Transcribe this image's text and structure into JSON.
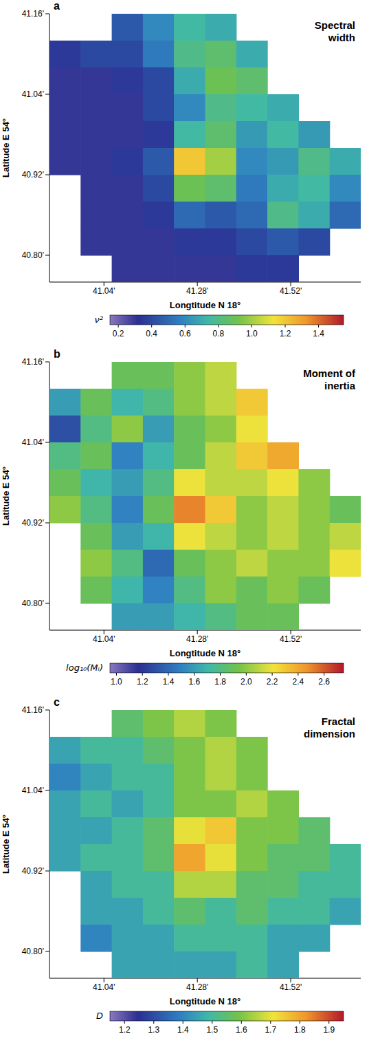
{
  "chart_data": [
    {
      "type": "heatmap",
      "panel": "a",
      "title": "Spectral width",
      "x_label": "Longtitude N 18°",
      "y_label": "Latitude E 54°",
      "x": [
        40.94,
        41.02,
        41.1,
        41.18,
        41.26,
        41.34,
        41.42,
        41.5,
        41.58,
        41.66
      ],
      "y": [
        41.14,
        41.1,
        41.06,
        41.02,
        40.98,
        40.94,
        40.9,
        40.86,
        40.82,
        40.78
      ],
      "cells": [
        [
          null,
          null,
          0.45,
          0.6,
          0.75,
          0.7,
          null,
          null,
          null,
          null
        ],
        [
          0.35,
          0.4,
          0.4,
          0.55,
          0.8,
          0.85,
          0.7,
          null,
          null,
          null
        ],
        [
          0.3,
          0.3,
          0.35,
          0.4,
          0.7,
          0.9,
          0.85,
          null,
          null,
          null
        ],
        [
          0.3,
          0.3,
          0.3,
          0.4,
          0.6,
          0.8,
          0.75,
          0.7,
          null,
          null
        ],
        [
          0.3,
          0.3,
          0.3,
          0.35,
          0.75,
          0.85,
          0.65,
          0.75,
          0.65,
          null
        ],
        [
          0.3,
          0.3,
          0.35,
          0.45,
          1.2,
          1.0,
          0.6,
          0.65,
          0.8,
          0.7
        ],
        [
          null,
          0.3,
          0.3,
          0.4,
          0.9,
          0.85,
          0.55,
          0.7,
          0.75,
          0.6
        ],
        [
          null,
          0.3,
          0.3,
          0.35,
          0.5,
          0.45,
          0.5,
          0.8,
          0.7,
          0.5
        ],
        [
          null,
          0.3,
          0.3,
          0.3,
          0.35,
          0.35,
          0.4,
          0.45,
          0.4,
          null
        ],
        [
          null,
          null,
          0.3,
          0.3,
          0.3,
          0.3,
          0.35,
          0.35,
          null,
          null
        ]
      ],
      "xlim": [
        40.9,
        41.7
      ],
      "ylim": [
        40.76,
        41.16
      ],
      "xticks": [
        {
          "value": 41.04,
          "label": "41.04'"
        },
        {
          "value": 41.28,
          "label": "41.28'"
        },
        {
          "value": 41.52,
          "label": "41.52'"
        }
      ],
      "yticks": [
        {
          "value": 40.8,
          "label": "40.80'"
        },
        {
          "value": 40.92,
          "label": "40.92'"
        },
        {
          "value": 41.04,
          "label": "41.04'"
        },
        {
          "value": 41.16,
          "label": "41.16'"
        }
      ],
      "colorbar_label": "ν²",
      "colorbar_range": [
        0.15,
        1.55
      ],
      "colorbar_ticks": [
        0.2,
        0.4,
        0.6,
        0.8,
        {
          "value": 1,
          "label": "1.0"
        },
        1.2,
        1.4
      ],
      "grid": false
    },
    {
      "type": "heatmap",
      "panel": "b",
      "title": "Moment of inertia",
      "x_label": "Longtitude N 18°",
      "y_label": "Latitude E 54°",
      "x": [
        40.94,
        41.02,
        41.1,
        41.18,
        41.26,
        41.34,
        41.42,
        41.5,
        41.58,
        41.66
      ],
      "y": [
        41.14,
        41.1,
        41.06,
        41.02,
        40.98,
        40.94,
        40.9,
        40.86,
        40.82,
        40.78
      ],
      "cells": [
        [
          null,
          null,
          1.9,
          1.9,
          2.0,
          2.1,
          null,
          null,
          null,
          null
        ],
        [
          1.6,
          1.9,
          1.7,
          1.8,
          2.0,
          2.1,
          2.3,
          null,
          null,
          null
        ],
        [
          1.3,
          1.8,
          2.0,
          1.6,
          1.9,
          2.0,
          2.2,
          null,
          null,
          null
        ],
        [
          1.8,
          1.9,
          1.5,
          1.7,
          1.9,
          2.1,
          2.3,
          2.4,
          null,
          null
        ],
        [
          1.9,
          1.7,
          1.6,
          1.8,
          2.2,
          2.1,
          2.1,
          2.2,
          2.0,
          null
        ],
        [
          2.0,
          1.8,
          1.5,
          1.9,
          2.5,
          2.3,
          2.0,
          2.1,
          2.0,
          1.9
        ],
        [
          null,
          1.9,
          1.6,
          1.7,
          2.2,
          2.1,
          2.0,
          2.1,
          2.0,
          2.1
        ],
        [
          null,
          2.0,
          1.8,
          1.4,
          1.9,
          2.0,
          2.1,
          2.0,
          2.0,
          2.2
        ],
        [
          null,
          1.9,
          1.7,
          1.5,
          1.8,
          2.0,
          1.9,
          2.0,
          1.9,
          null
        ],
        [
          null,
          null,
          1.6,
          1.6,
          1.7,
          1.8,
          1.9,
          1.9,
          null,
          null
        ]
      ],
      "xlim": [
        40.9,
        41.7
      ],
      "ylim": [
        40.76,
        41.16
      ],
      "xticks": [
        {
          "value": 41.04,
          "label": "41.04'"
        },
        {
          "value": 41.28,
          "label": "41.28'"
        },
        {
          "value": 41.52,
          "label": "41.52'"
        }
      ],
      "yticks": [
        {
          "value": 40.8,
          "label": "40.80'"
        },
        {
          "value": 40.92,
          "label": "40.92'"
        },
        {
          "value": 41.04,
          "label": "41.04'"
        },
        {
          "value": 41.16,
          "label": "41.16'"
        }
      ],
      "colorbar_label": "log₁₀(Mᵢ)",
      "colorbar_range": [
        0.95,
        2.75
      ],
      "colorbar_ticks": [
        {
          "value": 1,
          "label": "1.0"
        },
        1.2,
        1.4,
        1.6,
        1.8,
        {
          "value": 2,
          "label": "2.0"
        },
        2.2,
        2.4,
        2.6
      ],
      "grid": false
    },
    {
      "type": "heatmap",
      "panel": "c",
      "title": "Fractal dimension",
      "x_label": "Longtitude N 18°",
      "y_label": "Latitude E 54°",
      "x": [
        40.94,
        41.02,
        41.1,
        41.18,
        41.26,
        41.34,
        41.42,
        41.5,
        41.58,
        41.66
      ],
      "y": [
        41.14,
        41.1,
        41.06,
        41.02,
        40.98,
        40.94,
        40.9,
        40.86,
        40.82,
        40.78
      ],
      "cells": [
        [
          null,
          null,
          1.55,
          1.6,
          1.65,
          1.6,
          null,
          null,
          null,
          null
        ],
        [
          1.45,
          1.5,
          1.5,
          1.55,
          1.6,
          1.65,
          1.6,
          null,
          null,
          null
        ],
        [
          1.4,
          1.45,
          1.5,
          1.5,
          1.6,
          1.65,
          1.6,
          null,
          null,
          null
        ],
        [
          1.45,
          1.5,
          1.45,
          1.5,
          1.6,
          1.6,
          1.65,
          1.6,
          null,
          null
        ],
        [
          1.45,
          1.45,
          1.5,
          1.55,
          1.7,
          1.75,
          1.6,
          1.6,
          1.55,
          null
        ],
        [
          1.45,
          1.5,
          1.5,
          1.55,
          1.8,
          1.7,
          1.6,
          1.55,
          1.55,
          1.5
        ],
        [
          null,
          1.45,
          1.5,
          1.5,
          1.65,
          1.65,
          1.55,
          1.55,
          1.5,
          1.5
        ],
        [
          null,
          1.45,
          1.45,
          1.5,
          1.55,
          1.5,
          1.55,
          1.5,
          1.5,
          1.45
        ],
        [
          null,
          1.4,
          1.45,
          1.45,
          1.5,
          1.5,
          1.5,
          1.45,
          1.45,
          null
        ],
        [
          null,
          null,
          1.45,
          1.45,
          1.45,
          1.45,
          1.5,
          1.45,
          null,
          null
        ]
      ],
      "xlim": [
        40.9,
        41.7
      ],
      "ylim": [
        40.76,
        41.16
      ],
      "xticks": [
        {
          "value": 41.04,
          "label": "41.04'"
        },
        {
          "value": 41.28,
          "label": "41.28'"
        },
        {
          "value": 41.52,
          "label": "41.52'"
        }
      ],
      "yticks": [
        {
          "value": 40.8,
          "label": "40.80'"
        },
        {
          "value": 40.92,
          "label": "40.92'"
        },
        {
          "value": 41.04,
          "label": "41.04'"
        },
        {
          "value": 41.16,
          "label": "41.16'"
        }
      ],
      "colorbar_label": "D",
      "colorbar_range": [
        1.15,
        1.95
      ],
      "colorbar_ticks": [
        1.2,
        1.3,
        1.4,
        1.5,
        1.6,
        1.7,
        1.8,
        1.9
      ],
      "grid": false
    }
  ]
}
